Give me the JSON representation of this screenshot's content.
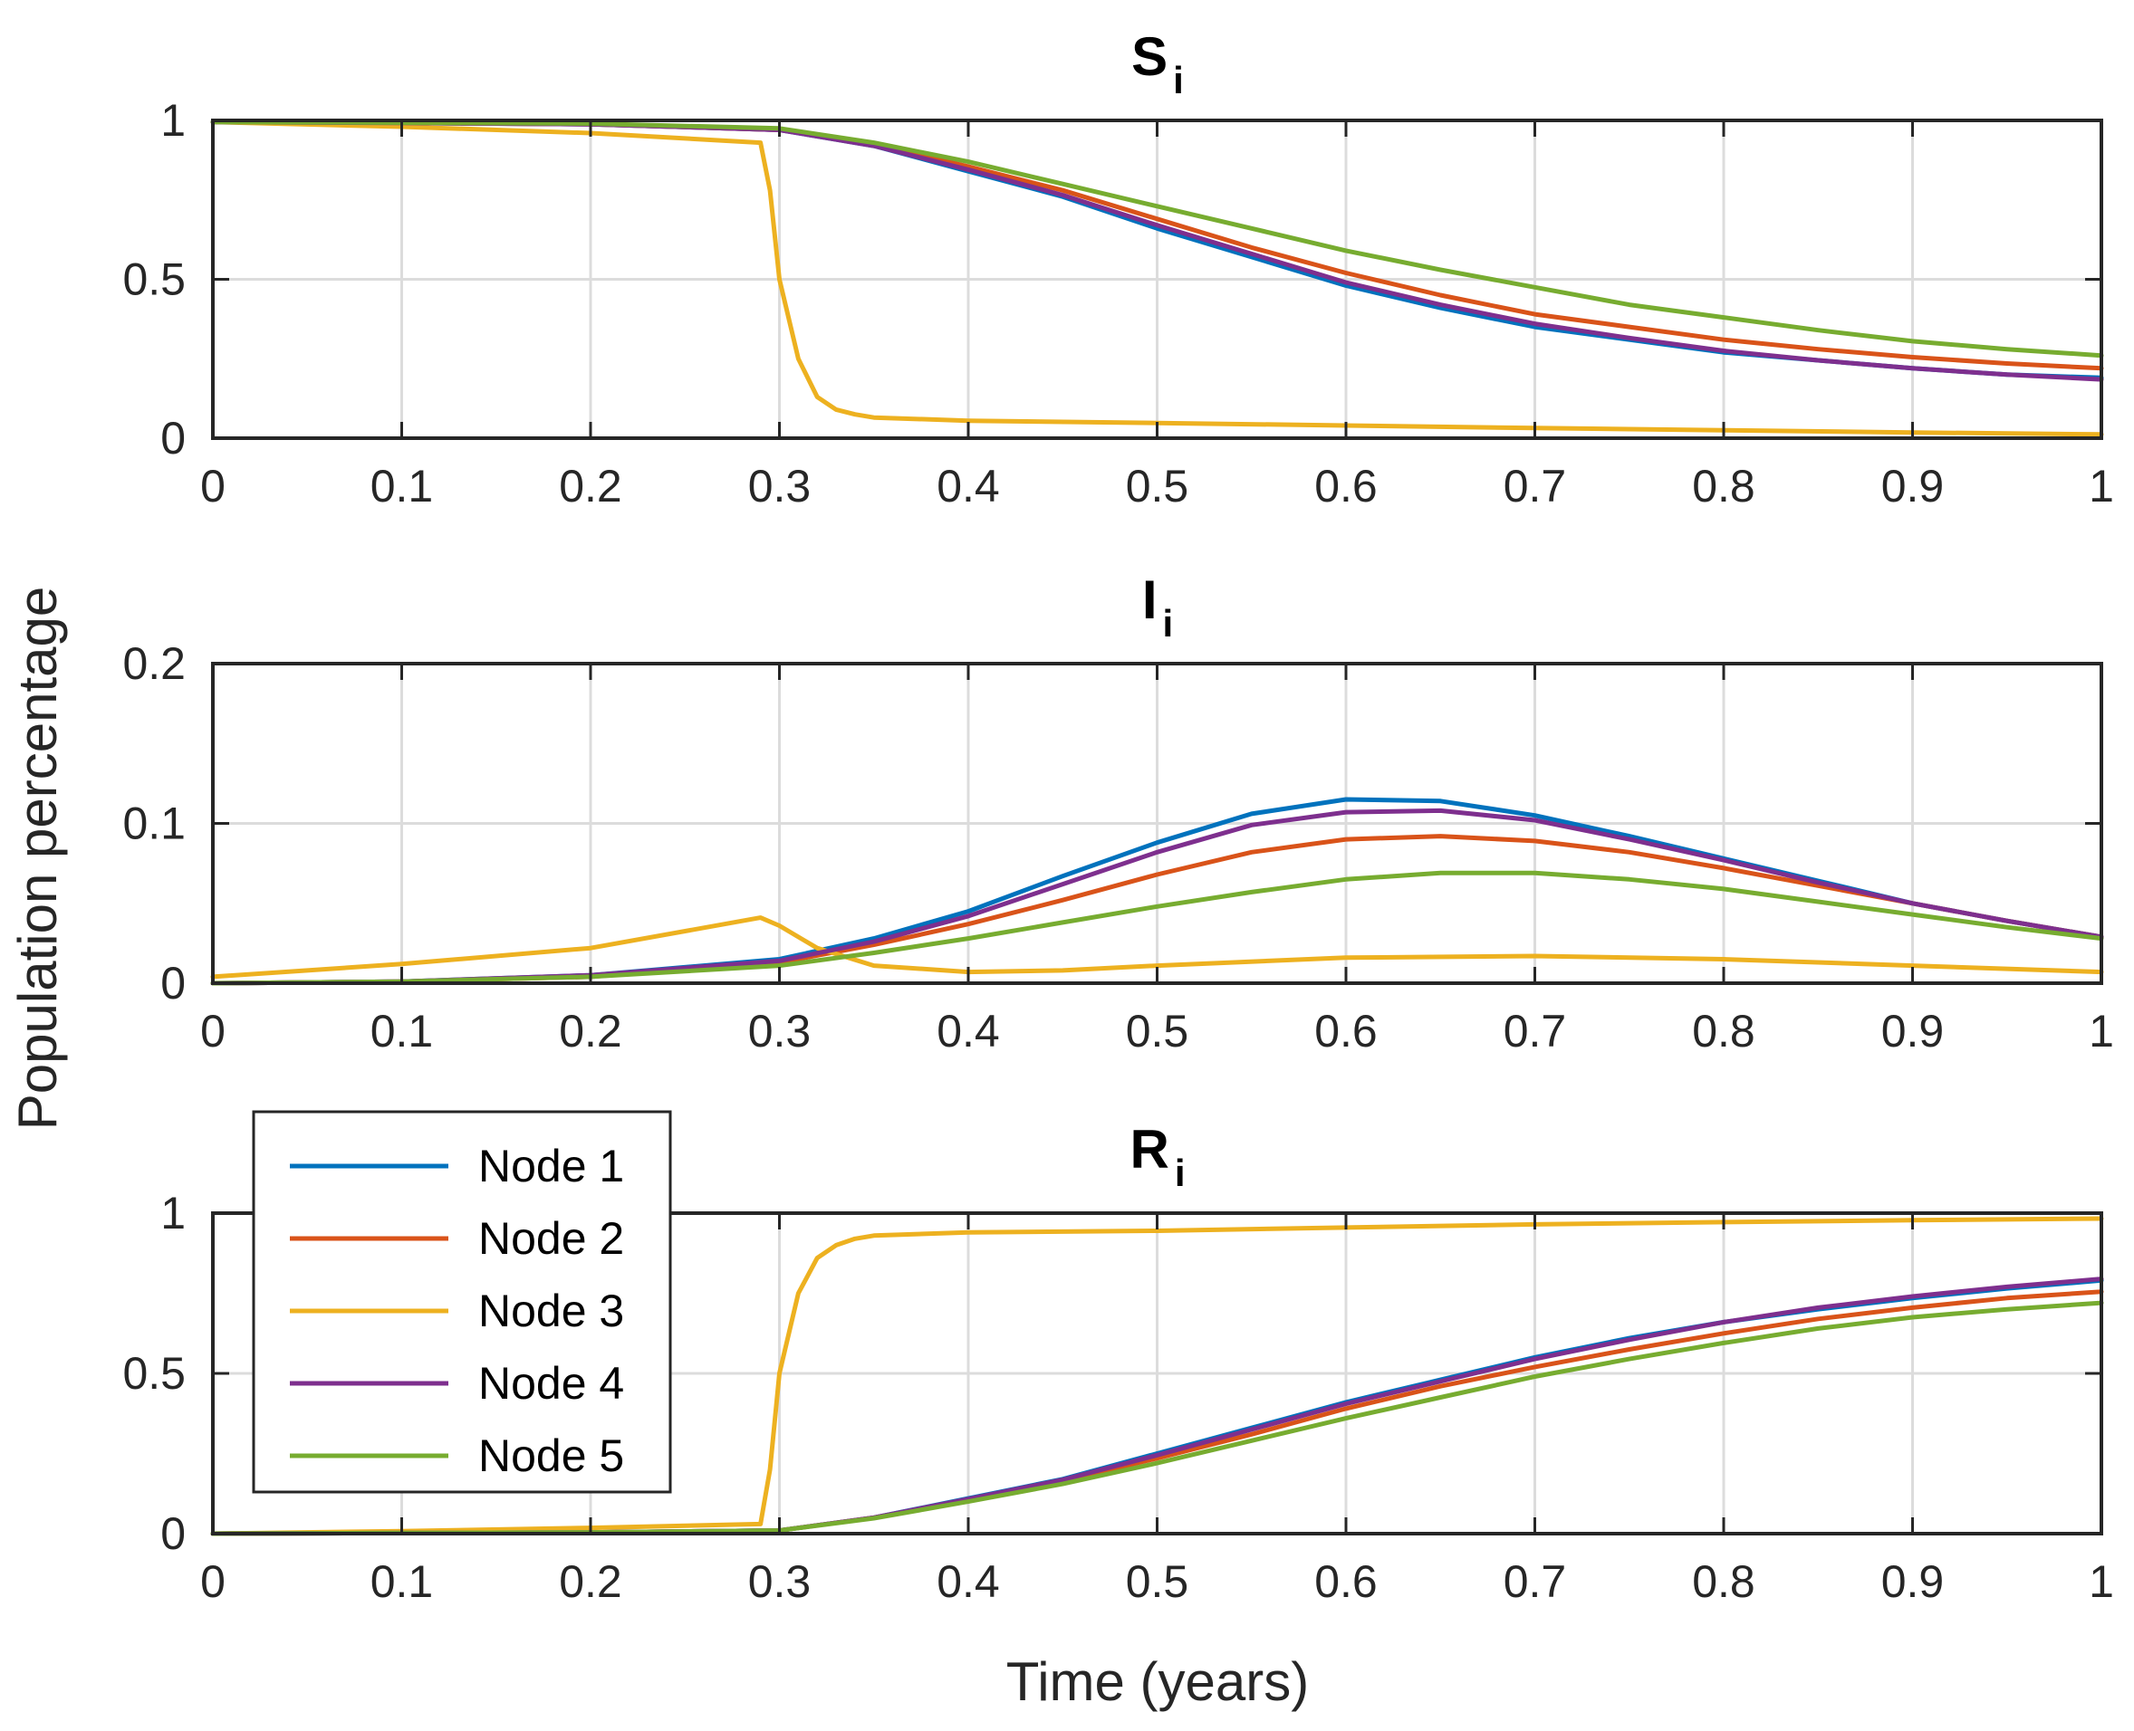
{
  "chart_data": [
    {
      "type": "line",
      "title": "S",
      "title_subscript": "i",
      "xlabel": "",
      "ylabel": "",
      "xlim": [
        0,
        1
      ],
      "ylim": [
        0,
        1
      ],
      "xticks": [
        0,
        0.1,
        0.2,
        0.3,
        0.4,
        0.5,
        0.6,
        0.7,
        0.8,
        0.9,
        1
      ],
      "xtick_labels": [
        "0",
        "0.1",
        "0.2",
        "0.3",
        "0.4",
        "0.5",
        "0.6",
        "0.7",
        "0.8",
        "0.9",
        "1"
      ],
      "yticks": [
        0,
        0.5,
        1
      ],
      "ytick_labels": [
        "0",
        "0.5",
        "1"
      ],
      "grid": true,
      "series": [
        {
          "name": "Node 1",
          "color": "#0072BD",
          "x": [
            0,
            0.1,
            0.2,
            0.3,
            0.35,
            0.4,
            0.45,
            0.5,
            0.55,
            0.6,
            0.65,
            0.7,
            0.75,
            0.8,
            0.85,
            0.9,
            0.95,
            1
          ],
          "y": [
            0.995,
            0.992,
            0.988,
            0.97,
            0.92,
            0.84,
            0.76,
            0.66,
            0.57,
            0.48,
            0.41,
            0.35,
            0.31,
            0.27,
            0.245,
            0.22,
            0.2,
            0.19
          ]
        },
        {
          "name": "Node 2",
          "color": "#D95319",
          "x": [
            0,
            0.1,
            0.2,
            0.3,
            0.35,
            0.4,
            0.45,
            0.5,
            0.55,
            0.6,
            0.65,
            0.7,
            0.75,
            0.8,
            0.85,
            0.9,
            0.95,
            1
          ],
          "y": [
            0.995,
            0.992,
            0.988,
            0.97,
            0.925,
            0.855,
            0.78,
            0.69,
            0.6,
            0.52,
            0.45,
            0.39,
            0.35,
            0.31,
            0.28,
            0.255,
            0.235,
            0.22
          ]
        },
        {
          "name": "Node 3",
          "color": "#EDB120",
          "x": [
            0,
            0.1,
            0.2,
            0.29,
            0.295,
            0.3,
            0.31,
            0.32,
            0.33,
            0.34,
            0.35,
            0.4,
            0.5,
            0.6,
            0.7,
            0.8,
            0.9,
            1
          ],
          "y": [
            0.995,
            0.98,
            0.96,
            0.93,
            0.78,
            0.5,
            0.25,
            0.13,
            0.09,
            0.075,
            0.065,
            0.055,
            0.048,
            0.04,
            0.032,
            0.025,
            0.018,
            0.012
          ]
        },
        {
          "name": "Node 4",
          "color": "#7E2F8E",
          "x": [
            0,
            0.1,
            0.2,
            0.3,
            0.35,
            0.4,
            0.45,
            0.5,
            0.55,
            0.6,
            0.65,
            0.7,
            0.75,
            0.8,
            0.85,
            0.9,
            0.95,
            1
          ],
          "y": [
            0.995,
            0.992,
            0.988,
            0.97,
            0.92,
            0.845,
            0.765,
            0.67,
            0.58,
            0.49,
            0.42,
            0.36,
            0.315,
            0.275,
            0.245,
            0.22,
            0.2,
            0.185
          ]
        },
        {
          "name": "Node 5",
          "color": "#77AC30",
          "x": [
            0,
            0.1,
            0.2,
            0.3,
            0.35,
            0.4,
            0.45,
            0.5,
            0.55,
            0.6,
            0.65,
            0.7,
            0.75,
            0.8,
            0.85,
            0.9,
            0.95,
            1
          ],
          "y": [
            0.995,
            0.993,
            0.99,
            0.975,
            0.93,
            0.87,
            0.8,
            0.73,
            0.66,
            0.59,
            0.53,
            0.475,
            0.42,
            0.38,
            0.34,
            0.305,
            0.28,
            0.26
          ]
        }
      ]
    },
    {
      "type": "line",
      "title": "I",
      "title_subscript": "i",
      "xlabel": "",
      "ylabel": "Population percentage",
      "xlim": [
        0,
        1
      ],
      "ylim": [
        0,
        0.2
      ],
      "xticks": [
        0,
        0.1,
        0.2,
        0.3,
        0.4,
        0.5,
        0.6,
        0.7,
        0.8,
        0.9,
        1
      ],
      "xtick_labels": [
        "0",
        "0.1",
        "0.2",
        "0.3",
        "0.4",
        "0.5",
        "0.6",
        "0.7",
        "0.8",
        "0.9",
        "1"
      ],
      "yticks": [
        0,
        0.1,
        0.2
      ],
      "ytick_labels": [
        "0",
        "0.1",
        "0.2"
      ],
      "grid": true,
      "series": [
        {
          "name": "Node 1",
          "color": "#0072BD",
          "x": [
            0,
            0.1,
            0.2,
            0.3,
            0.35,
            0.4,
            0.45,
            0.5,
            0.55,
            0.6,
            0.65,
            0.7,
            0.75,
            0.8,
            0.85,
            0.9,
            0.95,
            1
          ],
          "y": [
            0,
            0.001,
            0.005,
            0.015,
            0.028,
            0.045,
            0.067,
            0.088,
            0.106,
            0.115,
            0.114,
            0.105,
            0.092,
            0.078,
            0.064,
            0.05,
            0.039,
            0.029
          ]
        },
        {
          "name": "Node 2",
          "color": "#D95319",
          "x": [
            0,
            0.1,
            0.2,
            0.3,
            0.35,
            0.4,
            0.45,
            0.5,
            0.55,
            0.6,
            0.65,
            0.7,
            0.75,
            0.8,
            0.85,
            0.9,
            0.95,
            1
          ],
          "y": [
            0,
            0.001,
            0.004,
            0.013,
            0.024,
            0.037,
            0.052,
            0.068,
            0.082,
            0.09,
            0.092,
            0.089,
            0.082,
            0.072,
            0.061,
            0.05,
            0.039,
            0.029
          ]
        },
        {
          "name": "Node 3",
          "color": "#EDB120",
          "x": [
            0,
            0.1,
            0.2,
            0.29,
            0.3,
            0.32,
            0.35,
            0.4,
            0.45,
            0.5,
            0.6,
            0.7,
            0.8,
            0.9,
            1
          ],
          "y": [
            0.004,
            0.012,
            0.022,
            0.041,
            0.036,
            0.022,
            0.011,
            0.007,
            0.008,
            0.011,
            0.016,
            0.017,
            0.015,
            0.011,
            0.007
          ]
        },
        {
          "name": "Node 4",
          "color": "#7E2F8E",
          "x": [
            0,
            0.1,
            0.2,
            0.3,
            0.35,
            0.4,
            0.45,
            0.5,
            0.55,
            0.6,
            0.65,
            0.7,
            0.75,
            0.8,
            0.85,
            0.9,
            0.95,
            1
          ],
          "y": [
            0,
            0.001,
            0.005,
            0.014,
            0.026,
            0.042,
            0.062,
            0.082,
            0.099,
            0.107,
            0.108,
            0.102,
            0.09,
            0.077,
            0.063,
            0.05,
            0.039,
            0.029
          ]
        },
        {
          "name": "Node 5",
          "color": "#77AC30",
          "x": [
            0,
            0.1,
            0.2,
            0.3,
            0.35,
            0.4,
            0.45,
            0.5,
            0.55,
            0.6,
            0.65,
            0.7,
            0.75,
            0.8,
            0.85,
            0.9,
            0.95,
            1
          ],
          "y": [
            0,
            0.001,
            0.004,
            0.011,
            0.019,
            0.028,
            0.038,
            0.048,
            0.057,
            0.065,
            0.069,
            0.069,
            0.065,
            0.059,
            0.051,
            0.043,
            0.035,
            0.028
          ]
        }
      ]
    },
    {
      "type": "line",
      "title": "R",
      "title_subscript": "i",
      "xlabel": "Time (years)",
      "ylabel": "",
      "xlim": [
        0,
        1
      ],
      "ylim": [
        0,
        1
      ],
      "xticks": [
        0,
        0.1,
        0.2,
        0.3,
        0.4,
        0.5,
        0.6,
        0.7,
        0.8,
        0.9,
        1
      ],
      "xtick_labels": [
        "0",
        "0.1",
        "0.2",
        "0.3",
        "0.4",
        "0.5",
        "0.6",
        "0.7",
        "0.8",
        "0.9",
        "1"
      ],
      "yticks": [
        0,
        0.5,
        1
      ],
      "ytick_labels": [
        "0",
        "0.5",
        "1"
      ],
      "grid": true,
      "legend": {
        "position": "left",
        "entries": [
          "Node 1",
          "Node 2",
          "Node 3",
          "Node 4",
          "Node 5"
        ]
      },
      "series": [
        {
          "name": "Node 1",
          "color": "#0072BD",
          "x": [
            0,
            0.1,
            0.2,
            0.3,
            0.35,
            0.4,
            0.45,
            0.5,
            0.55,
            0.6,
            0.65,
            0.7,
            0.75,
            0.8,
            0.85,
            0.9,
            0.95,
            1
          ],
          "y": [
            0,
            0.002,
            0.004,
            0.01,
            0.05,
            0.11,
            0.17,
            0.25,
            0.33,
            0.41,
            0.48,
            0.55,
            0.61,
            0.66,
            0.7,
            0.735,
            0.765,
            0.79
          ]
        },
        {
          "name": "Node 2",
          "color": "#D95319",
          "x": [
            0,
            0.1,
            0.2,
            0.3,
            0.35,
            0.4,
            0.45,
            0.5,
            0.55,
            0.6,
            0.65,
            0.7,
            0.75,
            0.8,
            0.85,
            0.9,
            0.95,
            1
          ],
          "y": [
            0,
            0.002,
            0.004,
            0.01,
            0.05,
            0.105,
            0.165,
            0.235,
            0.31,
            0.39,
            0.46,
            0.52,
            0.575,
            0.625,
            0.67,
            0.705,
            0.735,
            0.755
          ]
        },
        {
          "name": "Node 3",
          "color": "#EDB120",
          "x": [
            0,
            0.1,
            0.2,
            0.29,
            0.295,
            0.3,
            0.31,
            0.32,
            0.33,
            0.34,
            0.35,
            0.4,
            0.5,
            0.6,
            0.7,
            0.8,
            0.9,
            1
          ],
          "y": [
            0,
            0.008,
            0.018,
            0.03,
            0.2,
            0.5,
            0.75,
            0.86,
            0.9,
            0.92,
            0.93,
            0.94,
            0.945,
            0.955,
            0.965,
            0.972,
            0.978,
            0.983
          ]
        },
        {
          "name": "Node 4",
          "color": "#7E2F8E",
          "x": [
            0,
            0.1,
            0.2,
            0.3,
            0.35,
            0.4,
            0.45,
            0.5,
            0.55,
            0.6,
            0.65,
            0.7,
            0.75,
            0.8,
            0.85,
            0.9,
            0.95,
            1
          ],
          "y": [
            0,
            0.002,
            0.004,
            0.01,
            0.05,
            0.108,
            0.168,
            0.245,
            0.325,
            0.405,
            0.475,
            0.545,
            0.605,
            0.66,
            0.705,
            0.74,
            0.77,
            0.795
          ]
        },
        {
          "name": "Node 5",
          "color": "#77AC30",
          "x": [
            0,
            0.1,
            0.2,
            0.3,
            0.35,
            0.4,
            0.45,
            0.5,
            0.55,
            0.6,
            0.65,
            0.7,
            0.75,
            0.8,
            0.85,
            0.9,
            0.95,
            1
          ],
          "y": [
            0,
            0.002,
            0.004,
            0.01,
            0.048,
            0.1,
            0.155,
            0.22,
            0.29,
            0.36,
            0.425,
            0.49,
            0.545,
            0.595,
            0.64,
            0.675,
            0.7,
            0.72
          ]
        }
      ]
    }
  ],
  "figure": {
    "ylabel": "Population percentage",
    "xlabel": "Time (years)"
  }
}
